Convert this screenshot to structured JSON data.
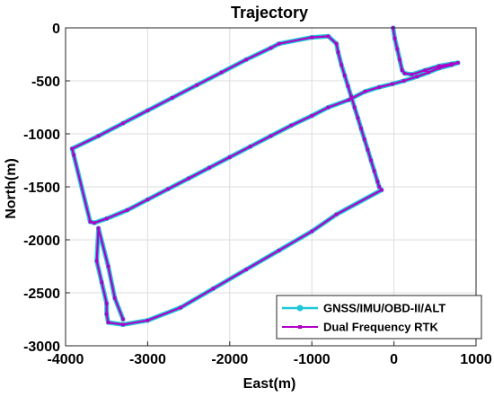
{
  "chart_data": {
    "type": "line",
    "title": "Trajectory",
    "xlabel": "East(m)",
    "ylabel": "North(m)",
    "xlim": [
      -4000,
      1000
    ],
    "ylim": [
      -3000,
      0
    ],
    "xticks": [
      -4000,
      -3000,
      -2000,
      -1000,
      0,
      1000
    ],
    "yticks": [
      0,
      -500,
      -1000,
      -1500,
      -2000,
      -2500,
      -3000
    ],
    "xtick_labels": [
      "-4000",
      "-3000",
      "-2000",
      "-1000",
      "0",
      "1000"
    ],
    "ytick_labels": [
      "0",
      "-500",
      "-1000",
      "-1500",
      "-2000",
      "-2500",
      "-3000"
    ],
    "grid": true,
    "legend_position": "bottom-right",
    "series": [
      {
        "name": "GNSS/IMU/OBD-II/ALT",
        "color": "#1ec8d8",
        "marker": "circle",
        "x": [
          -10,
          10,
          40,
          70,
          100,
          130,
          220,
          380,
          550,
          700,
          780,
          700,
          550,
          420,
          280,
          120,
          -20,
          -180,
          -350,
          -550,
          -800,
          -1000,
          -1250,
          -1500,
          -1750,
          -2000,
          -2250,
          -2500,
          -2750,
          -3000,
          -3250,
          -3500,
          -3650,
          -3700,
          -3900,
          -3920,
          -3600,
          -3300,
          -3000,
          -2700,
          -2400,
          -2100,
          -1800,
          -1500,
          -1400,
          -1000,
          -800,
          -700,
          -680,
          -640,
          -600,
          -560,
          -520,
          -480,
          -440,
          -400,
          -360,
          -320,
          -280,
          -240,
          -200,
          -180,
          -150,
          -700,
          -1000,
          -1400,
          -1800,
          -2200,
          -2600,
          -3000,
          -3300,
          -3480,
          -3500,
          -3500,
          -3560,
          -3620,
          -3600,
          -3480,
          -3400,
          -3300
        ],
        "y": [
          0,
          -100,
          -200,
          -300,
          -400,
          -430,
          -440,
          -400,
          -360,
          -340,
          -330,
          -350,
          -380,
          -420,
          -460,
          -500,
          -530,
          -560,
          -600,
          -680,
          -750,
          -830,
          -920,
          -1020,
          -1120,
          -1220,
          -1320,
          -1420,
          -1520,
          -1620,
          -1720,
          -1800,
          -1840,
          -1830,
          -1200,
          -1140,
          -1020,
          -900,
          -780,
          -660,
          -540,
          -420,
          -300,
          -190,
          -150,
          -90,
          -80,
          -150,
          -230,
          -350,
          -450,
          -550,
          -650,
          -750,
          -850,
          -950,
          -1050,
          -1150,
          -1250,
          -1350,
          -1450,
          -1500,
          -1530,
          -1760,
          -1920,
          -2100,
          -2280,
          -2460,
          -2640,
          -2760,
          -2800,
          -2780,
          -2700,
          -2600,
          -2400,
          -2200,
          -1890,
          -2250,
          -2550,
          -2750
        ]
      },
      {
        "name": "Dual Frequency RTK",
        "color": "#b000c8",
        "marker": "point",
        "x": [
          -10,
          10,
          40,
          70,
          100,
          130,
          220,
          380,
          550,
          700,
          780,
          700,
          550,
          420,
          280,
          120,
          -20,
          -180,
          -350,
          -550,
          -800,
          -1000,
          -1250,
          -1500,
          -1750,
          -2000,
          -2250,
          -2500,
          -2750,
          -3000,
          -3250,
          -3500,
          -3650,
          -3700,
          -3900,
          -3920,
          -3600,
          -3300,
          -3000,
          -2700,
          -2400,
          -2100,
          -1800,
          -1500,
          -1400,
          -1000,
          -800,
          -700,
          -680,
          -640,
          -600,
          -560,
          -520,
          -480,
          -440,
          -400,
          -360,
          -320,
          -280,
          -240,
          -200,
          -180,
          -150,
          -700,
          -1000,
          -1400,
          -1800,
          -2200,
          -2600,
          -3000,
          -3300,
          -3480,
          -3500,
          -3500,
          -3560,
          -3620,
          -3600,
          -3480,
          -3400,
          -3300
        ],
        "y": [
          0,
          -100,
          -200,
          -300,
          -400,
          -430,
          -440,
          -400,
          -360,
          -340,
          -330,
          -350,
          -380,
          -420,
          -460,
          -500,
          -530,
          -560,
          -600,
          -680,
          -750,
          -830,
          -920,
          -1020,
          -1120,
          -1220,
          -1320,
          -1420,
          -1520,
          -1620,
          -1720,
          -1800,
          -1840,
          -1830,
          -1200,
          -1140,
          -1020,
          -900,
          -780,
          -660,
          -540,
          -420,
          -300,
          -190,
          -150,
          -90,
          -80,
          -150,
          -230,
          -350,
          -450,
          -550,
          -650,
          -750,
          -850,
          -950,
          -1050,
          -1150,
          -1250,
          -1350,
          -1450,
          -1500,
          -1530,
          -1760,
          -1920,
          -2100,
          -2280,
          -2460,
          -2640,
          -2760,
          -2800,
          -2780,
          -2700,
          -2600,
          -2400,
          -2200,
          -1890,
          -2250,
          -2550,
          -2750
        ]
      }
    ]
  }
}
